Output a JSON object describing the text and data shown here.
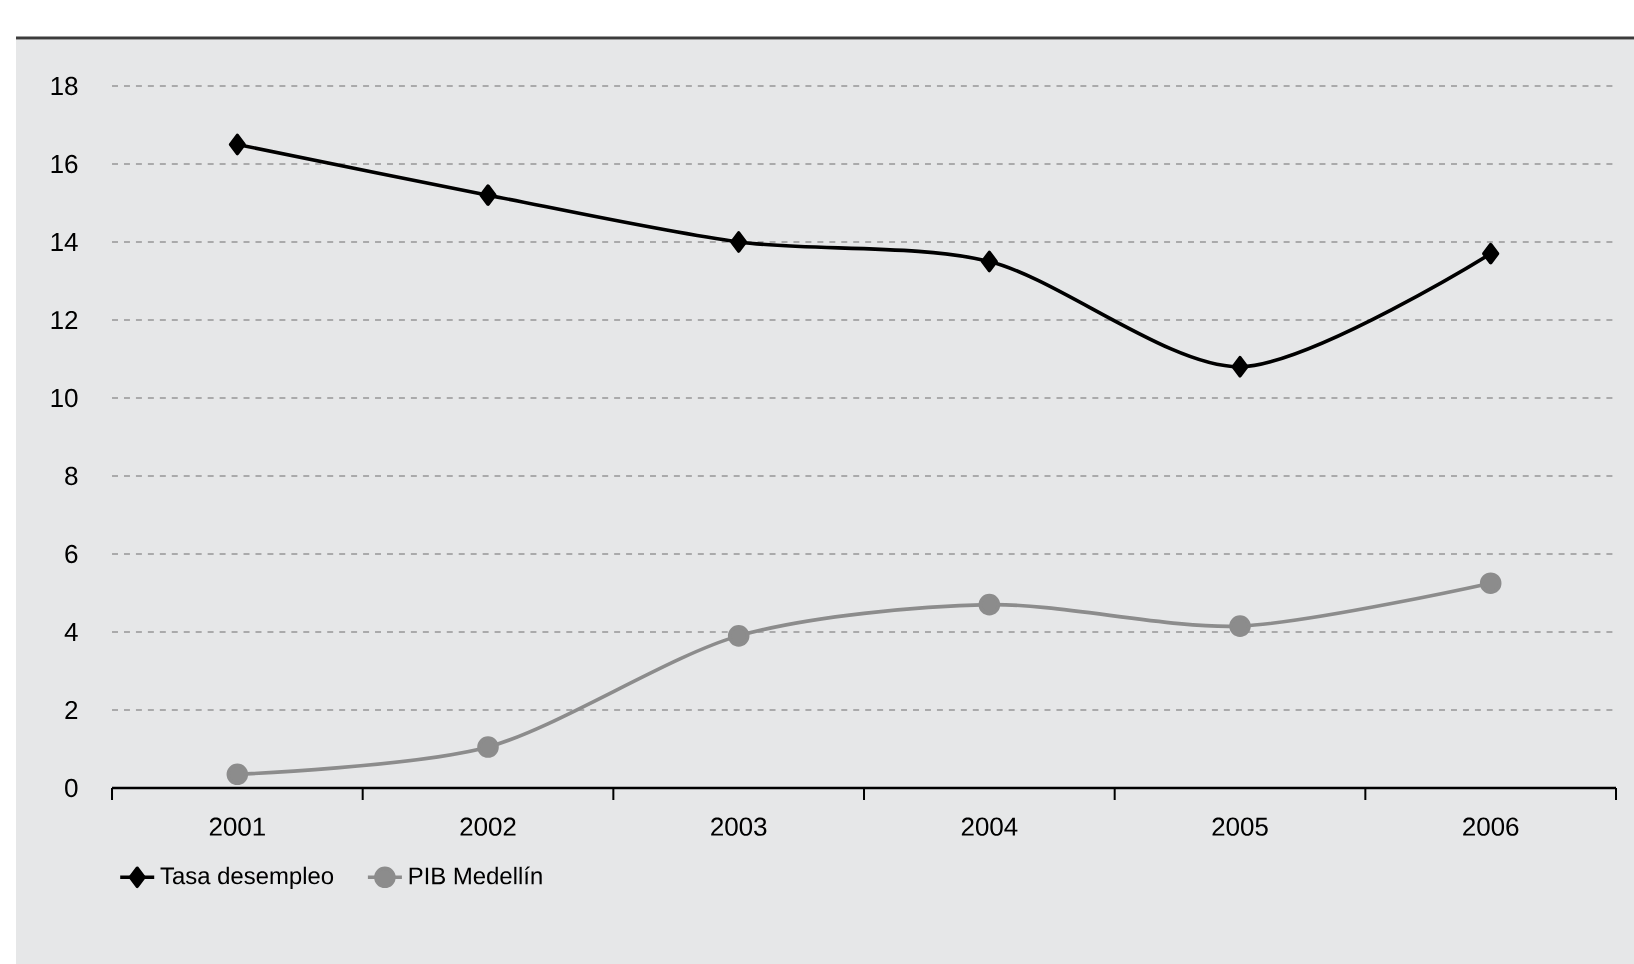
{
  "chart_data": {
    "type": "line",
    "categories": [
      "2001",
      "2002",
      "2003",
      "2004",
      "2005",
      "2006"
    ],
    "series": [
      {
        "name": "Tasa desempleo",
        "color": "#000000",
        "marker": "diamond",
        "values": [
          16.5,
          15.2,
          14.0,
          13.5,
          10.8,
          13.7
        ]
      },
      {
        "name": "PIB Medellín",
        "color": "#8c8c8c",
        "marker": "circle",
        "values": [
          0.35,
          1.05,
          3.9,
          4.7,
          4.15,
          5.25
        ]
      }
    ],
    "ylim": [
      0,
      18
    ],
    "yticks": [
      0,
      2,
      4,
      6,
      8,
      10,
      12,
      14,
      16,
      18
    ],
    "grid": "y",
    "legend": "bottom left",
    "line_style": "solid"
  }
}
